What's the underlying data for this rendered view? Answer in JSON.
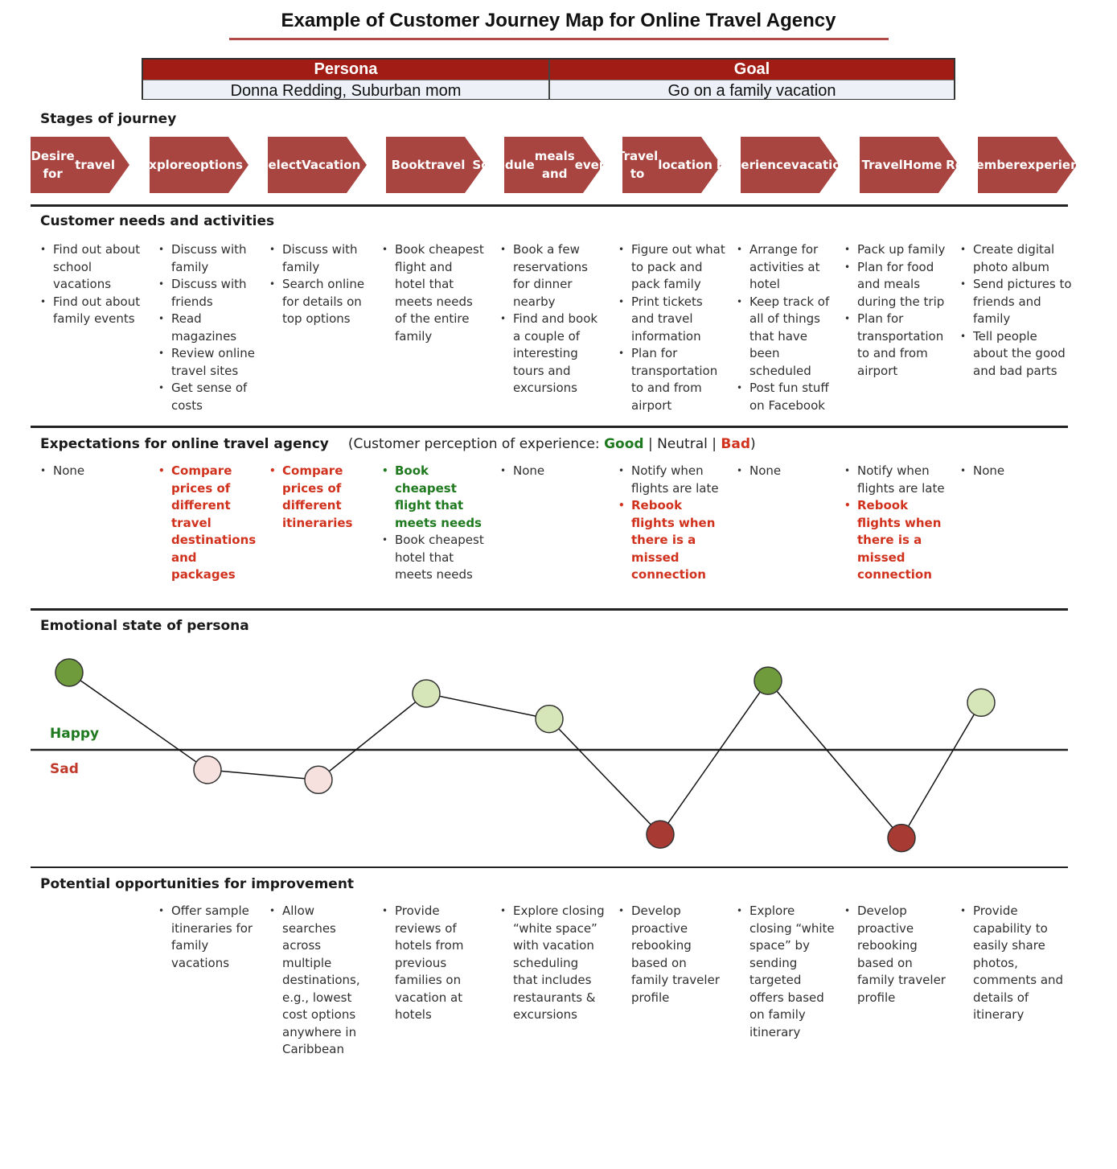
{
  "title": "Example of Customer Journey Map for Online Travel Agency",
  "persona_table": {
    "persona_header": "Persona",
    "persona_value": "Donna Redding, Suburban mom",
    "goal_header": "Goal",
    "goal_value": "Go on a family vacation"
  },
  "sections": {
    "stages": "Stages of journey",
    "needs": "Customer needs and activities",
    "expectations": "Expectations for online travel agency",
    "expectations_note_prefix": "(Customer perception of experience:",
    "good": "Good",
    "sep1": "|",
    "neutral": "Neutral",
    "sep2": "|",
    "bad": "Bad",
    "close": ")",
    "emotional": "Emotional state of persona",
    "opportunities": "Potential opportunities for improvement"
  },
  "colors": {
    "arrow_fill": "#a84541",
    "good": "#1f7a1f",
    "bad": "#d1321e",
    "happy_dark": "#6f9b3c",
    "happy_light": "#d7e6b9",
    "sad_light": "#f6e1df",
    "sad_dark": "#a83a34"
  },
  "stages": [
    {
      "line1": "Desire for",
      "line2": "travel",
      "line3": ""
    },
    {
      "line1": "Explore",
      "line2": "options",
      "line3": ""
    },
    {
      "line1": "Select",
      "line2": "Vacation",
      "line3": ""
    },
    {
      "line1": "Book",
      "line2": "travel",
      "line3": ""
    },
    {
      "line1": "Schedule",
      "line2": "meals and",
      "line3": "events"
    },
    {
      "line1": "Travel to",
      "line2": "location",
      "line3": ""
    },
    {
      "line1": "Experience",
      "line2": "vacation",
      "line3": ""
    },
    {
      "line1": "Travel",
      "line2": "Home",
      "line3": ""
    },
    {
      "line1": "Remember",
      "line2": "experience",
      "line3": ""
    }
  ],
  "needs": [
    [
      "Find out about school vacations",
      "Find out about family events"
    ],
    [
      "Discuss with family",
      "Discuss with friends",
      "Read magazines",
      "Review online travel sites",
      "Get sense of costs"
    ],
    [
      "Discuss with family",
      "Search online for details on top options"
    ],
    [
      "Book cheapest flight and hotel that meets needs of the entire family"
    ],
    [
      "Book a few reservations for dinner nearby",
      "Find and book a couple of interesting tours and excursions"
    ],
    [
      "Figure out what to pack and pack family",
      "Print tickets and travel information",
      "Plan for transportation to and from airport"
    ],
    [
      "Arrange for activities at hotel",
      "Keep track of all of things that have been scheduled",
      "Post fun stuff on Facebook"
    ],
    [
      "Pack up family",
      "Plan for food and meals during the trip",
      "Plan for transportation to and from airport"
    ],
    [
      "Create digital photo album",
      "Send pictures to friends and family",
      "Tell people about the good and bad parts"
    ]
  ],
  "expectations": [
    [
      {
        "text": "None",
        "tone": "neutral"
      }
    ],
    [
      {
        "text": "Compare prices of different travel destinations and packages",
        "tone": "bad"
      }
    ],
    [
      {
        "text": "Compare prices of different itineraries",
        "tone": "bad"
      }
    ],
    [
      {
        "text": "Book cheapest flight that meets needs",
        "tone": "good"
      },
      {
        "text": "Book cheapest hotel that meets needs",
        "tone": "neutral"
      }
    ],
    [
      {
        "text": "None",
        "tone": "neutral"
      }
    ],
    [
      {
        "text": "Notify when flights are late",
        "tone": "neutral"
      },
      {
        "text": "Rebook flights when there is a missed connection",
        "tone": "bad"
      }
    ],
    [
      {
        "text": "None",
        "tone": "neutral"
      }
    ],
    [
      {
        "text": "Notify when flights are late",
        "tone": "neutral"
      },
      {
        "text": "Rebook flights when there is a missed connection",
        "tone": "bad"
      }
    ],
    [
      {
        "text": "None",
        "tone": "neutral"
      }
    ]
  ],
  "emotion": {
    "happy_label": "Happy",
    "sad_label": "Sad",
    "points": [
      {
        "stage": "Desire for travel",
        "level": 0.85,
        "tone": "happy_dark"
      },
      {
        "stage": "Explore options",
        "level": -0.22,
        "tone": "sad_light"
      },
      {
        "stage": "Select Vacation",
        "level": -0.33,
        "tone": "sad_light"
      },
      {
        "stage": "Book travel",
        "level": 0.62,
        "tone": "happy_light"
      },
      {
        "stage": "Schedule meals and events",
        "level": 0.34,
        "tone": "happy_light"
      },
      {
        "stage": "Travel to location",
        "level": -0.93,
        "tone": "sad_dark"
      },
      {
        "stage": "Experience vacation",
        "level": 0.76,
        "tone": "happy_dark"
      },
      {
        "stage": "Travel Home",
        "level": -0.97,
        "tone": "sad_dark"
      },
      {
        "stage": "Remember experience",
        "level": 0.52,
        "tone": "happy_light"
      }
    ]
  },
  "opportunities": [
    [],
    [
      "Offer sample itineraries for family vacations"
    ],
    [
      "Allow searches across multiple destinations, e.g., lowest cost options anywhere in Caribbean"
    ],
    [
      "Provide reviews of hotels from previous families on vacation at hotels"
    ],
    [
      "Explore closing “white space” with vacation scheduling that includes restaurants & excursions"
    ],
    [
      "Develop proactive rebooking based on family traveler profile"
    ],
    [
      "Explore closing “white space” by sending targeted offers based on family itinerary"
    ],
    [
      "Develop proactive rebooking based on family traveler profile"
    ],
    [
      "Provide capability to easily share photos, comments and details of itinerary"
    ]
  ]
}
